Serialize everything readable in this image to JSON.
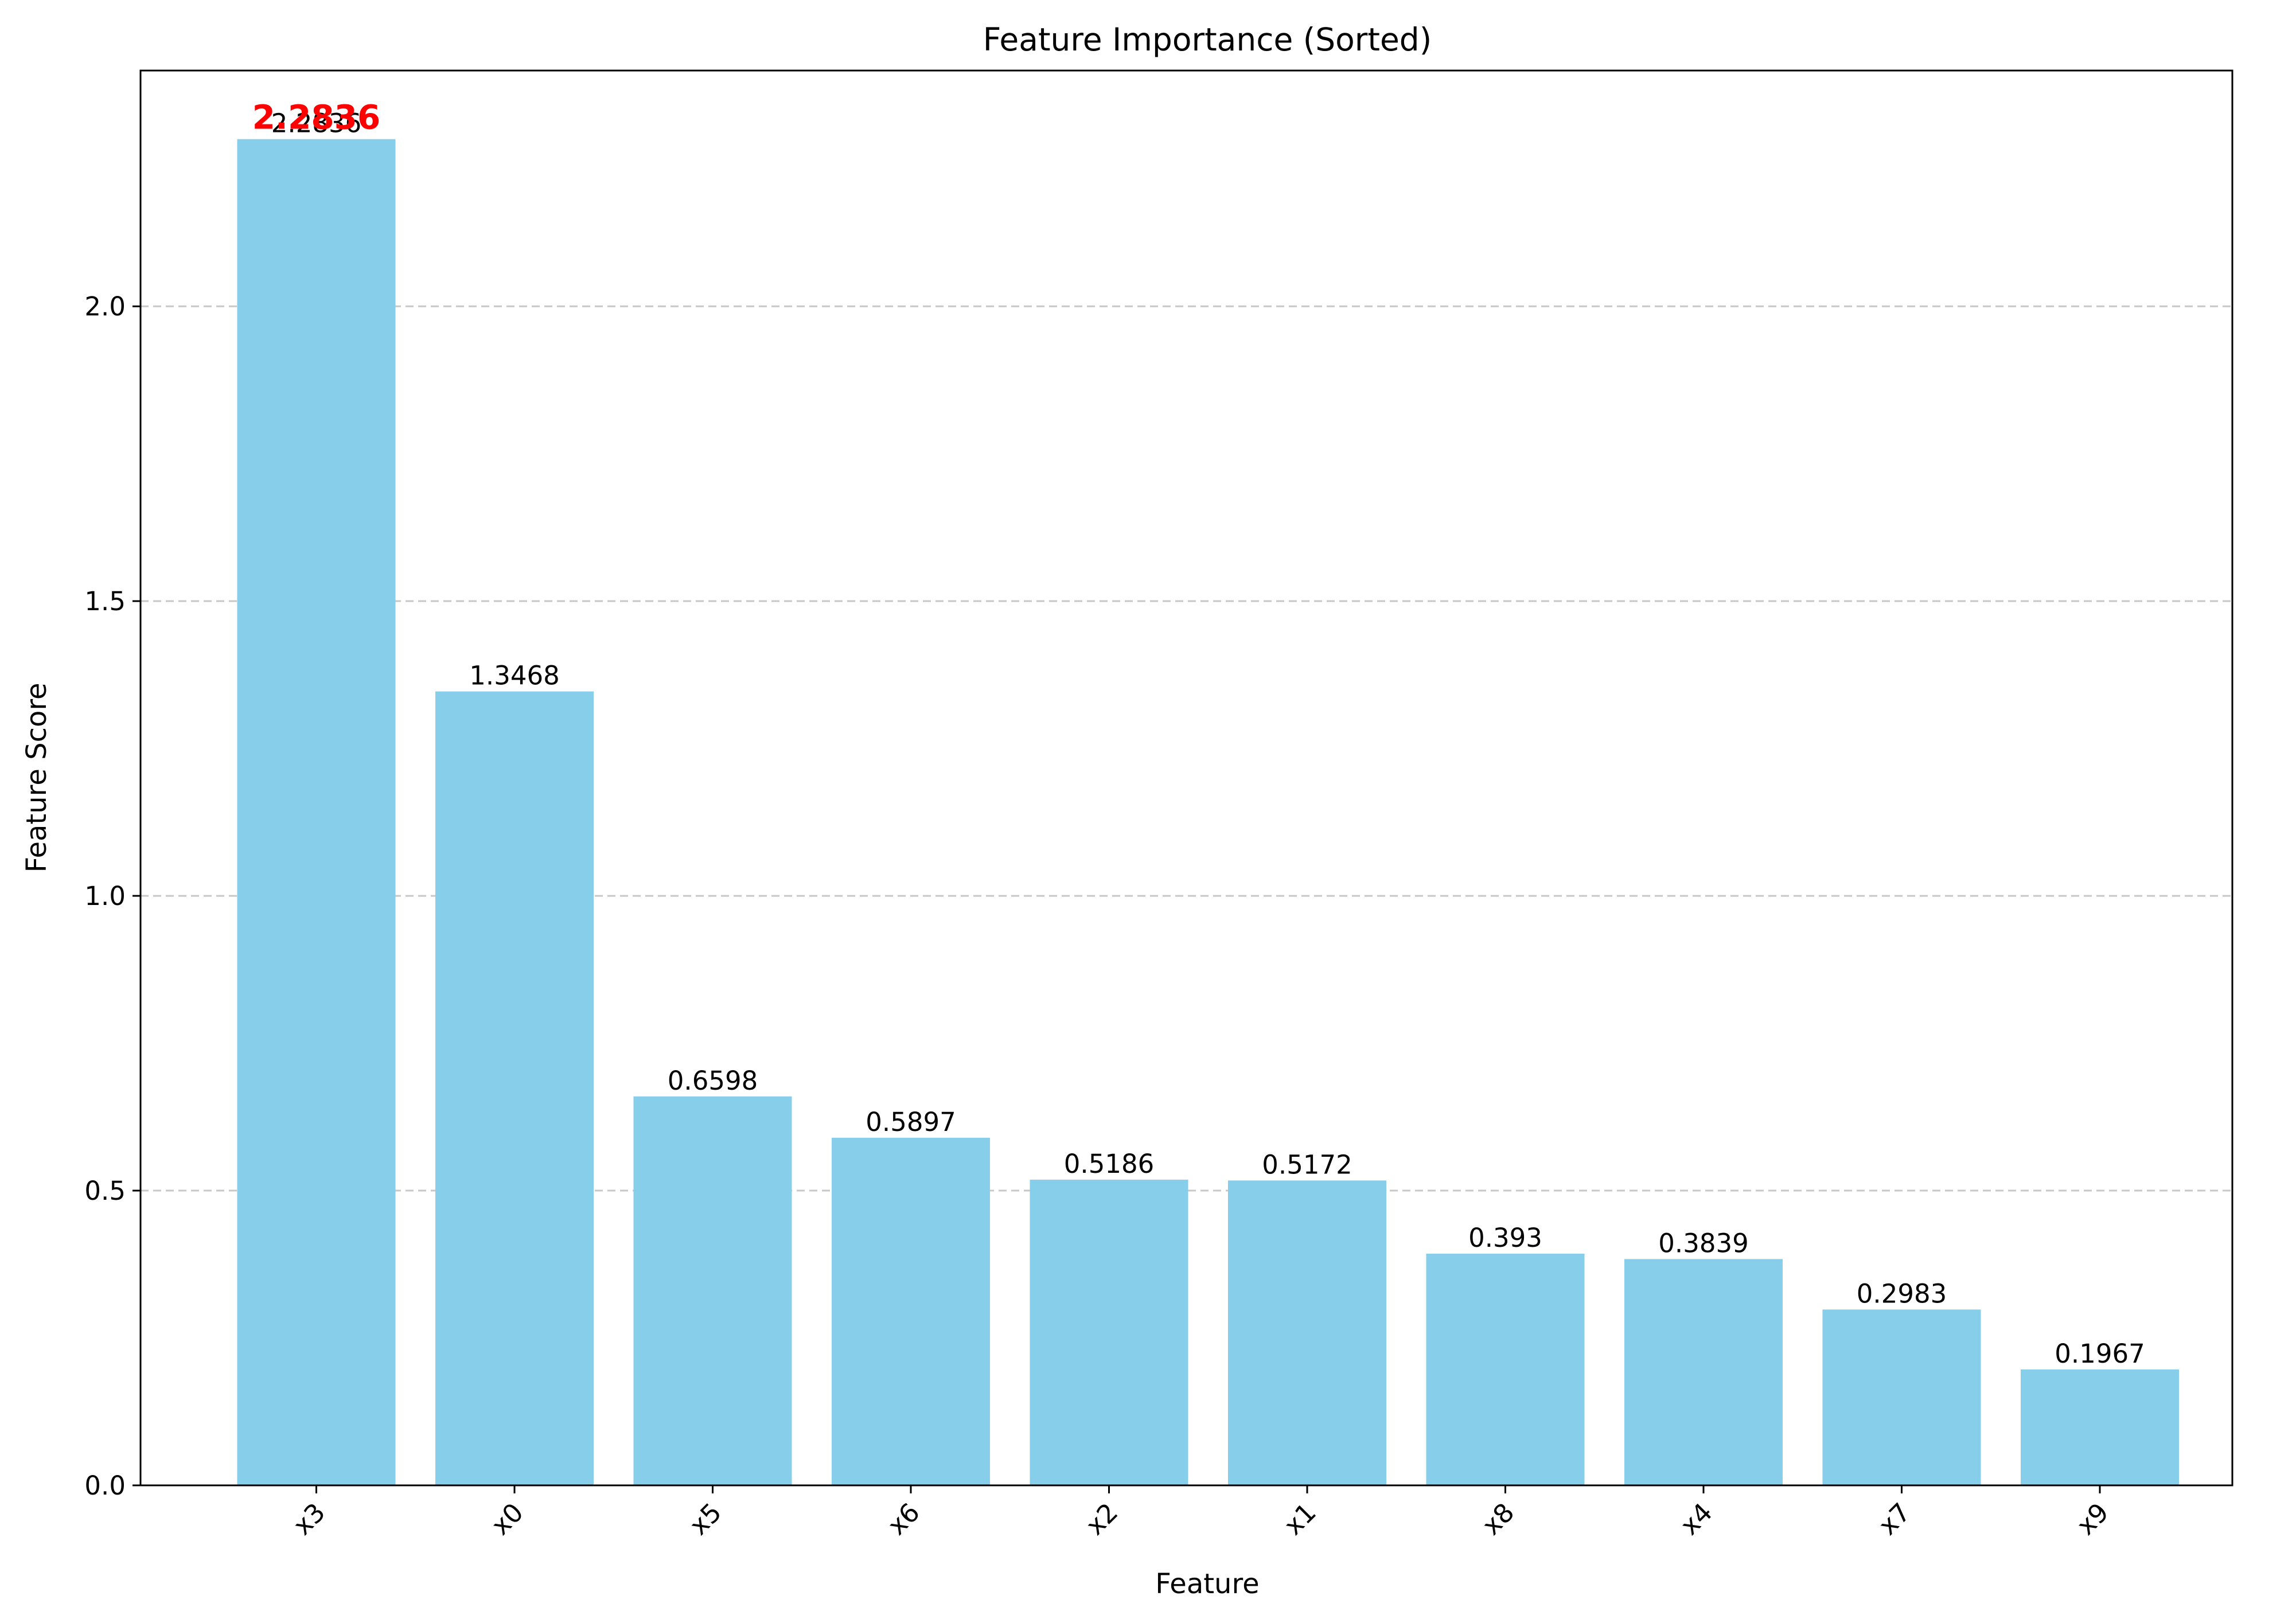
{
  "chart_data": {
    "type": "bar",
    "title": "Feature Importance (Sorted)",
    "xlabel": "Feature",
    "ylabel": "Feature Score",
    "categories": [
      "x3",
      "x0",
      "x5",
      "x6",
      "x2",
      "x1",
      "x8",
      "x4",
      "x7",
      "x9"
    ],
    "values": [
      2.2836,
      1.3468,
      0.6598,
      0.5897,
      0.5186,
      0.5172,
      0.393,
      0.3839,
      0.2983,
      0.1967
    ],
    "value_labels": [
      "2.2836",
      "1.3468",
      "0.6598",
      "0.5897",
      "0.5186",
      "0.5172",
      "0.393",
      "0.3839",
      "0.2983",
      "0.1967"
    ],
    "highlight": {
      "category": "x3",
      "label": "2.2836",
      "color": "#ff0000"
    },
    "ylim": [
      0,
      2.4
    ],
    "yticks": [
      0.0,
      0.5,
      1.0,
      1.5,
      2.0
    ],
    "ytick_labels": [
      "0.0",
      "0.5",
      "1.0",
      "1.5",
      "2.0"
    ],
    "xtick_rotation_deg": 45,
    "grid": {
      "axis": "y",
      "style": "dashed"
    },
    "bar_color": "#87ceeb"
  }
}
